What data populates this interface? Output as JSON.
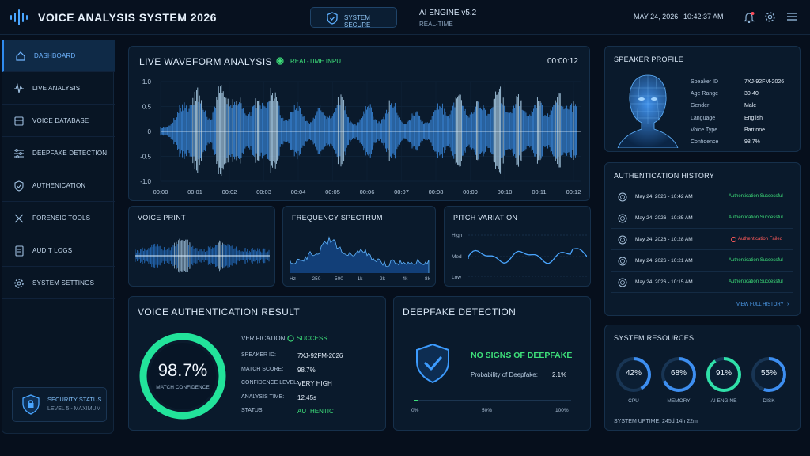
{
  "header": {
    "title": "VOICE ANALYSIS SYSTEM 2026",
    "badge": "SYSTEM SECURE",
    "engine": "AI ENGINE v5.2",
    "engine_mode": "REAL-TIME",
    "date": "MAY 24, 2026",
    "time": "10:42:37 AM"
  },
  "sidebar": {
    "items": [
      {
        "label": "DASHBOARD",
        "icon": "home-icon"
      },
      {
        "label": "LIVE ANALYSIS",
        "icon": "waveform-icon"
      },
      {
        "label": "VOICE DATABASE",
        "icon": "database-icon"
      },
      {
        "label": "DEEPFAKE DETECTION",
        "icon": "sliders-icon"
      },
      {
        "label": "AUTHENICATION",
        "icon": "shield-check-icon"
      },
      {
        "label": "FORENSIC TOOLS",
        "icon": "tools-icon"
      },
      {
        "label": "AUDIT LOGS",
        "icon": "document-icon"
      },
      {
        "label": "SYSTEM SETTINGS",
        "icon": "gear-icon"
      }
    ],
    "security_status": "SECURITY STATUS",
    "security_level": "LEVEL 5 - MAXIMUM"
  },
  "waveform": {
    "title": "LIVE WAVEFORM ANALYSIS",
    "input": "REAL-TIME INPUT",
    "timer": "00:00:12",
    "y_ticks": [
      "1.0",
      "0.5",
      "0",
      "-0.5",
      "-1.0"
    ],
    "x_ticks": [
      "00:00",
      "00:01",
      "00:02",
      "00:03",
      "00:04",
      "00:05",
      "00:06",
      "00:07",
      "00:08",
      "00:09",
      "00:10",
      "00:11",
      "00:12"
    ]
  },
  "voice_print": {
    "title": "VOICE PRINT"
  },
  "frequency": {
    "title": "FREQUENCY SPECTRUM",
    "ticks": [
      "Hz",
      "250",
      "500",
      "1k",
      "2k",
      "4k",
      "8k"
    ]
  },
  "pitch": {
    "title": "PITCH VARIATION",
    "levels": [
      "High",
      "Med",
      "Low"
    ]
  },
  "auth_result": {
    "title": "VOICE AUTHENTICATION RESULT",
    "score": "98.7%",
    "score_value": 98.7,
    "score_label": "MATCH CONFIDENCE",
    "verification_label": "VERIFICATION:",
    "verification_value": "SUCCESS",
    "rows": [
      {
        "k": "SPEAKER ID:",
        "v": "7XJ-92FM-2026"
      },
      {
        "k": "MATCH SCORE:",
        "v": "98.7%"
      },
      {
        "k": "CONFIDENCE LEVEL:",
        "v": "VERY HIGH"
      },
      {
        "k": "ANALYSIS TIME:",
        "v": "12.45s"
      },
      {
        "k": "STATUS:",
        "v": "AUTHENTIC"
      }
    ]
  },
  "deepfake": {
    "title": "DEEPFAKE DETECTION",
    "headline": "NO SIGNS OF DEEPFAKE",
    "prob_label": "Probability of Deepfake:",
    "prob_value": "2.1%",
    "prob": 2.1,
    "scale": [
      "0%",
      "50%",
      "100%"
    ]
  },
  "speaker": {
    "title": "SPEAKER PROFILE",
    "rows": [
      {
        "k": "Speaker ID",
        "v": "7XJ-92FM-2026"
      },
      {
        "k": "Age Range",
        "v": "30-40"
      },
      {
        "k": "Gender",
        "v": "Male"
      },
      {
        "k": "Language",
        "v": "English"
      },
      {
        "k": "Voice Type",
        "v": "Baritone"
      },
      {
        "k": "Confidence",
        "v": "98.7%"
      }
    ]
  },
  "history": {
    "title": "AUTHENTICATION HISTORY",
    "rows": [
      {
        "time": "May 24, 2026 - 10:42 AM",
        "status": "Authentication Successful",
        "ok": true
      },
      {
        "time": "May 24, 2026 - 10:35 AM",
        "status": "Authentication Successful",
        "ok": true
      },
      {
        "time": "May 24, 2026 - 10:28 AM",
        "status": "Authentication Failed",
        "ok": false
      },
      {
        "time": "May 24, 2026 - 10:21 AM",
        "status": "Authentication Successful",
        "ok": true
      },
      {
        "time": "May 24, 2026 - 10:15 AM",
        "status": "Authentication Successful",
        "ok": true
      }
    ],
    "link": "VIEW FULL HISTORY"
  },
  "resources": {
    "title": "SYSTEM RESOURCES",
    "items": [
      {
        "label": "CPU",
        "value": "42%",
        "pct": 42
      },
      {
        "label": "MEMORY",
        "value": "68%",
        "pct": 68
      },
      {
        "label": "AI ENGINE",
        "value": "91%",
        "pct": 91
      },
      {
        "label": "DISK",
        "value": "55%",
        "pct": 55
      }
    ],
    "uptime": "SYSTEM UPTIME: 245d 14h 22m"
  },
  "colors": {
    "accent": "#2f8bef",
    "success": "#3ee07a",
    "fail": "#ff5a5a",
    "ring": "#22e39a"
  }
}
